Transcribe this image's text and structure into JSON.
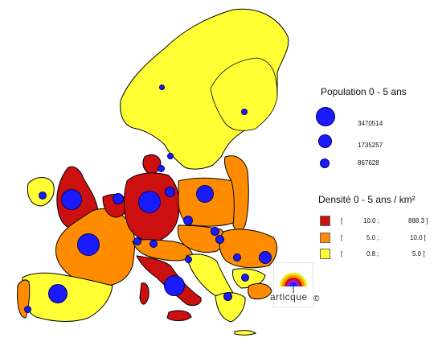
{
  "legend_population": {
    "title": "Population 0 - 5 ans",
    "values": [
      "3470514",
      "1735257",
      "867628"
    ]
  },
  "legend_density": {
    "title": "Densité 0 - 5 ans / km²",
    "classes": [
      {
        "open": "[",
        "low": "10.0 ;",
        "high": "888.3 ]",
        "color": "#cc1010"
      },
      {
        "open": "[",
        "low": "5.0 ;",
        "high": "10.0 [",
        "color": "#ff8c00"
      },
      {
        "open": "[",
        "low": "0.8 ;",
        "high": "5.0 [",
        "color": "#ffff33"
      }
    ]
  },
  "logo": {
    "text": "articque",
    "copyright": "©"
  },
  "colors": {
    "bubble": "#1a1aff",
    "border": "#000000",
    "background": "#ffffff"
  }
}
